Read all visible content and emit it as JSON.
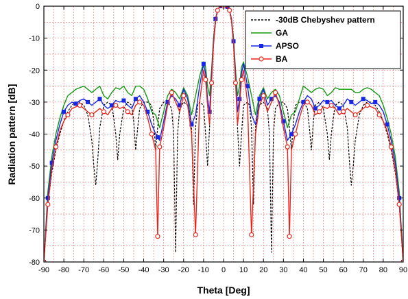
{
  "chart_data": {
    "type": "line",
    "xlabel": "Theta [Deg]",
    "ylabel": "Radiation pattern [dB]",
    "xlim": [
      -90,
      90
    ],
    "ylim": [
      -80,
      0
    ],
    "xticks": [
      -90,
      -80,
      -70,
      -60,
      -50,
      -40,
      -30,
      -20,
      -10,
      0,
      10,
      20,
      30,
      40,
      50,
      60,
      70,
      80,
      90
    ],
    "yticks": [
      0,
      -10,
      -20,
      -30,
      -40,
      -50,
      -60,
      -70,
      -80
    ],
    "grid": true,
    "legend_position": "top-right",
    "series": [
      {
        "name": "-30dB Chebyshev pattern",
        "color": "#000000",
        "style": "dashed",
        "marker": "none",
        "x": [
          -90,
          -88,
          -86,
          -84,
          -82,
          -80,
          -78,
          -76,
          -74,
          -72,
          -70,
          -68,
          -66,
          -65,
          -64,
          -63,
          -62,
          -60,
          -58,
          -56,
          -55,
          -54,
          -53,
          -52,
          -50,
          -48,
          -46,
          -45,
          -44,
          -43,
          -42,
          -40,
          -38,
          -36,
          -35,
          -34,
          -33,
          -32,
          -30,
          -28,
          -26,
          -25,
          -24,
          -23,
          -22,
          -20,
          -18,
          -16,
          -15,
          -14,
          -13,
          -12,
          -10,
          -9,
          -8,
          -7,
          -6,
          -5,
          -4,
          -3,
          -2,
          -1,
          0,
          1,
          2,
          3,
          4,
          5,
          6,
          7,
          8,
          9,
          10,
          12,
          13,
          14,
          15,
          16,
          18,
          20,
          22,
          23,
          24,
          25,
          26,
          28,
          30,
          32,
          33,
          34,
          35,
          36,
          38,
          40,
          42,
          43,
          44,
          45,
          46,
          48,
          50,
          52,
          53,
          54,
          55,
          56,
          58,
          60,
          62,
          63,
          64,
          65,
          66,
          68,
          70,
          72,
          74,
          76,
          78,
          80,
          82,
          84,
          86,
          88,
          90
        ],
        "y": [
          -80,
          -62,
          -52,
          -45,
          -40,
          -36,
          -33,
          -31,
          -30,
          -30,
          -31,
          -34,
          -42,
          -50,
          -56,
          -48,
          -38,
          -31,
          -30,
          -31,
          -35,
          -40,
          -48,
          -40,
          -32,
          -30,
          -31,
          -36,
          -45,
          -38,
          -32,
          -30,
          -30,
          -31,
          -36,
          -45,
          -38,
          -32,
          -30,
          -30,
          -32,
          -40,
          -77,
          -40,
          -32,
          -30,
          -31,
          -38,
          -62,
          -38,
          -31,
          -30,
          -31,
          -40,
          -50,
          -38,
          -22,
          -12,
          -5,
          -1.5,
          -0.3,
          0,
          0,
          0,
          -0.3,
          -1.5,
          -5,
          -12,
          -22,
          -38,
          -50,
          -40,
          -31,
          -30,
          -31,
          -38,
          -62,
          -38,
          -31,
          -30,
          -32,
          -40,
          -77,
          -40,
          -32,
          -30,
          -30,
          -32,
          -38,
          -45,
          -36,
          -31,
          -30,
          -30,
          -32,
          -38,
          -45,
          -36,
          -31,
          -30,
          -32,
          -40,
          -48,
          -40,
          -35,
          -31,
          -30,
          -31,
          -38,
          -48,
          -56,
          -50,
          -42,
          -34,
          -31,
          -30,
          -30,
          -31,
          -33,
          -36,
          -40,
          -45,
          -52,
          -62,
          -80
        ]
      },
      {
        "name": "GA",
        "color": "#119911",
        "style": "solid",
        "marker": "none",
        "x": [
          -90,
          -88,
          -86,
          -84,
          -82,
          -80,
          -78,
          -76,
          -74,
          -72,
          -70,
          -68,
          -66,
          -64,
          -62,
          -60,
          -58,
          -56,
          -54,
          -52,
          -50,
          -48,
          -46,
          -44,
          -42,
          -40,
          -38,
          -36,
          -34,
          -33,
          -32,
          -30,
          -28,
          -26,
          -24,
          -22,
          -20,
          -18,
          -16,
          -14,
          -12,
          -10,
          -9,
          -8,
          -7,
          -6,
          -5,
          -4,
          -3,
          -2,
          -1,
          0,
          1,
          2,
          3,
          4,
          5,
          6,
          7,
          8,
          9,
          10,
          12,
          14,
          16,
          18,
          20,
          22,
          24,
          26,
          28,
          30,
          32,
          33,
          34,
          36,
          38,
          40,
          42,
          44,
          46,
          48,
          50,
          52,
          54,
          56,
          58,
          60,
          62,
          64,
          66,
          68,
          70,
          72,
          74,
          76,
          78,
          80,
          82,
          84,
          86,
          88,
          90
        ],
        "y": [
          -80,
          -58,
          -47,
          -40,
          -35,
          -31,
          -28,
          -27,
          -26,
          -25.5,
          -25,
          -26,
          -27,
          -26,
          -25,
          -28,
          -29,
          -27,
          -25.5,
          -26,
          -25,
          -27,
          -28,
          -25,
          -25,
          -26,
          -29,
          -33,
          -34,
          -36,
          -38,
          -33,
          -28,
          -26,
          -27,
          -29,
          -25.5,
          -28,
          -34,
          -28,
          -22,
          -17.5,
          -19,
          -25,
          -28,
          -20,
          -10,
          -4,
          -1.2,
          -0.2,
          0,
          0,
          0,
          -0.2,
          -1.2,
          -4,
          -10,
          -20,
          -28,
          -25,
          -19,
          -17.5,
          -22,
          -28,
          -34,
          -28,
          -25.5,
          -29,
          -27,
          -26,
          -28,
          -33,
          -38,
          -36,
          -34,
          -33,
          -29,
          -25,
          -26,
          -27,
          -26,
          -25.5,
          -26,
          -28,
          -27,
          -25.5,
          -26,
          -26,
          -26,
          -26,
          -27,
          -27,
          -26,
          -25.5,
          -26,
          -27,
          -28,
          -31,
          -35,
          -40,
          -47,
          -58,
          -80
        ]
      },
      {
        "name": "APSO",
        "color": "#1428e6",
        "style": "solid",
        "marker": "square",
        "x": [
          -90,
          -88,
          -86,
          -84,
          -82,
          -80,
          -78,
          -76,
          -74,
          -72,
          -70,
          -68,
          -66,
          -64,
          -62,
          -60,
          -58,
          -56,
          -54,
          -52,
          -50,
          -48,
          -46,
          -44,
          -42,
          -40,
          -38,
          -36,
          -34,
          -33,
          -32,
          -30,
          -28,
          -26,
          -24,
          -22,
          -20,
          -18,
          -16,
          -14,
          -12,
          -10,
          -9,
          -8,
          -7,
          -6,
          -5,
          -4,
          -3,
          -2,
          -1,
          0,
          1,
          2,
          3,
          4,
          5,
          6,
          7,
          8,
          9,
          10,
          12,
          14,
          16,
          18,
          20,
          22,
          24,
          26,
          28,
          30,
          32,
          33,
          34,
          36,
          38,
          40,
          42,
          44,
          46,
          48,
          50,
          52,
          54,
          56,
          58,
          60,
          62,
          64,
          66,
          68,
          70,
          72,
          74,
          76,
          78,
          80,
          82,
          84,
          86,
          88,
          90
        ],
        "y": [
          -80,
          -60,
          -49,
          -42,
          -37,
          -33,
          -31,
          -30,
          -30.5,
          -29.5,
          -29,
          -30,
          -31,
          -30,
          -29,
          -31,
          -32,
          -31,
          -29.5,
          -30,
          -29.5,
          -31,
          -32,
          -29,
          -28,
          -30,
          -33,
          -37,
          -40,
          -41,
          -42,
          -36,
          -30,
          -28,
          -29,
          -31,
          -26,
          -29,
          -37,
          -34,
          -25,
          -18,
          -21,
          -29,
          -33,
          -22,
          -11,
          -4,
          -1.2,
          -0.2,
          0,
          0,
          0,
          -0.2,
          -1.2,
          -4,
          -11,
          -22,
          -33,
          -29,
          -21,
          -18,
          -25,
          -34,
          -37,
          -29,
          -26,
          -31,
          -29,
          -28,
          -30,
          -36,
          -42,
          -41,
          -40,
          -37,
          -33,
          -30,
          -28,
          -29,
          -32,
          -31,
          -29.5,
          -30,
          -29.5,
          -31,
          -32,
          -31,
          -29,
          -30,
          -31,
          -30,
          -29,
          -29.5,
          -30.5,
          -30,
          -31,
          -33,
          -37,
          -42,
          -49,
          -60,
          -80
        ]
      },
      {
        "name": "BA",
        "color": "#e8251b",
        "style": "solid",
        "marker": "circle",
        "x": [
          -90,
          -88,
          -86,
          -84,
          -82,
          -80,
          -78,
          -76,
          -74,
          -72,
          -70,
          -68,
          -66,
          -64,
          -62,
          -60,
          -58,
          -56,
          -54,
          -52,
          -50,
          -48,
          -46,
          -44,
          -42,
          -40,
          -38,
          -36,
          -34,
          -33,
          -32,
          -30,
          -28,
          -26,
          -24,
          -22,
          -20,
          -18,
          -16,
          -14,
          -12,
          -10,
          -9,
          -8,
          -7,
          -6,
          -5,
          -4,
          -3,
          -2,
          -1,
          0,
          1,
          2,
          3,
          4,
          5,
          6,
          7,
          8,
          9,
          10,
          12,
          14,
          16,
          18,
          20,
          22,
          24,
          26,
          28,
          30,
          32,
          33,
          34,
          36,
          38,
          40,
          42,
          44,
          46,
          48,
          50,
          52,
          54,
          56,
          58,
          60,
          62,
          64,
          66,
          68,
          70,
          72,
          74,
          76,
          78,
          80,
          82,
          84,
          86,
          88,
          90
        ],
        "y": [
          -80,
          -62,
          -51,
          -44,
          -39,
          -36,
          -34,
          -32,
          -31.5,
          -31,
          -32,
          -33,
          -34,
          -33,
          -32,
          -33,
          -34,
          -32,
          -31,
          -32,
          -31.5,
          -33,
          -34,
          -31,
          -30,
          -31,
          -35,
          -40,
          -45,
          -72,
          -44,
          -38,
          -31,
          -27,
          -30,
          -33,
          -28,
          -31,
          -40,
          -71.5,
          -30,
          -20,
          -23,
          -31,
          -37,
          -24,
          -12,
          -4.5,
          -1.3,
          -0.2,
          0,
          0,
          0,
          -0.2,
          -1.3,
          -4.5,
          -12,
          -24,
          -37,
          -31,
          -23,
          -20,
          -30,
          -71.5,
          -40,
          -31,
          -28,
          -33,
          -30,
          -27,
          -31,
          -38,
          -44,
          -72,
          -45,
          -40,
          -35,
          -31,
          -30,
          -31,
          -34,
          -33,
          -31.5,
          -32,
          -31,
          -32,
          -34,
          -33,
          -32,
          -33,
          -34,
          -33,
          -32,
          -31,
          -31.5,
          -32,
          -34,
          -36,
          -39,
          -44,
          -51,
          -62,
          -80
        ]
      }
    ]
  }
}
